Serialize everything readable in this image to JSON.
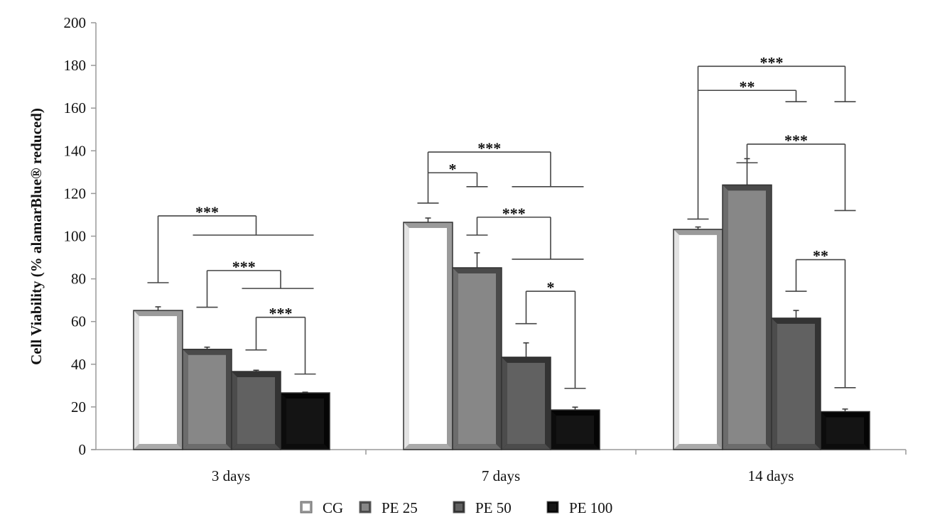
{
  "chart_data": {
    "type": "bar",
    "title": "",
    "xlabel": "",
    "ylabel": "Cell Viability (% alamarBlue® reduced)",
    "ylim": [
      0,
      200
    ],
    "yticks": [
      0,
      20,
      40,
      60,
      80,
      100,
      120,
      140,
      160,
      180,
      200
    ],
    "grid": false,
    "legend_position": "bottom",
    "categories": [
      "3 days",
      "7 days",
      "14 days"
    ],
    "series": [
      {
        "name": "CG",
        "values": [
          65.2,
          106.5,
          103.2
        ],
        "errors": [
          1.7,
          2.0,
          1.1
        ],
        "color": "#ffffff",
        "edge_light": "#e2e2e2",
        "edge_dark": "#9a9a9a"
      },
      {
        "name": "PE 25",
        "values": [
          47.0,
          85.2,
          124.0
        ],
        "errors": [
          1.0,
          7.0,
          12.3
        ],
        "color": "#878787",
        "edge_light": "#6c6c6c",
        "edge_dark": "#4a4a4a"
      },
      {
        "name": "PE 50",
        "values": [
          36.6,
          43.3,
          61.6
        ],
        "errors": [
          0.6,
          6.7,
          3.6
        ],
        "color": "#616161",
        "edge_light": "#4c4c4c",
        "edge_dark": "#333333"
      },
      {
        "name": "PE 100",
        "values": [
          26.6,
          18.6,
          17.8
        ],
        "errors": [
          0.3,
          1.3,
          1.2
        ],
        "color": "#141414",
        "edge_light": "#0c0c0c",
        "edge_dark": "#050505"
      }
    ],
    "significance": [
      {
        "category": 0,
        "from": 0,
        "to": [
          1,
          3
        ],
        "label": "***",
        "from_level": 78.2,
        "top_level": 109.5,
        "to_level": 100.5
      },
      {
        "category": 0,
        "from": 1,
        "to": [
          2,
          3
        ],
        "label": "***",
        "from_level": 66.7,
        "top_level": 83.9,
        "to_level": 75.5
      },
      {
        "category": 0,
        "from": 2,
        "to": [
          3,
          3
        ],
        "label": "***",
        "from_level": 46.7,
        "top_level": 62.0,
        "to_level": 35.4
      },
      {
        "category": 1,
        "from": 0,
        "to": [
          2,
          3
        ],
        "label": "***",
        "from_level": 115.5,
        "top_level": 139.4,
        "to_level": 123.2
      },
      {
        "category": 1,
        "from": 0,
        "to": [
          1,
          1
        ],
        "label": "*",
        "from_level": null,
        "top_level": 129.7,
        "to_level": 123.2
      },
      {
        "category": 1,
        "from": 1,
        "to": [
          2,
          3
        ],
        "label": "***",
        "from_level": 100.5,
        "top_level": 108.9,
        "to_level": 89.2
      },
      {
        "category": 1,
        "from": 2,
        "to": [
          3,
          3
        ],
        "label": "*",
        "from_level": 59.0,
        "top_level": 74.2,
        "to_level": 28.7
      },
      {
        "category": 2,
        "from": 0,
        "to": [
          3,
          3
        ],
        "label": "***",
        "from_level": 108.0,
        "top_level": 179.6,
        "to_level": 163.0
      },
      {
        "category": 2,
        "from": 0,
        "to": [
          2,
          2
        ],
        "label": "**",
        "from_level": null,
        "top_level": 168.3,
        "to_level": 163.0
      },
      {
        "category": 2,
        "from": 1,
        "to": [
          3,
          3
        ],
        "label": "***",
        "from_level": 134.4,
        "top_level": 143.1,
        "to_level": 112.0
      },
      {
        "category": 2,
        "from": 2,
        "to": [
          3,
          3
        ],
        "label": "**",
        "from_level": 74.2,
        "top_level": 89.0,
        "to_level": 29.0
      }
    ]
  }
}
